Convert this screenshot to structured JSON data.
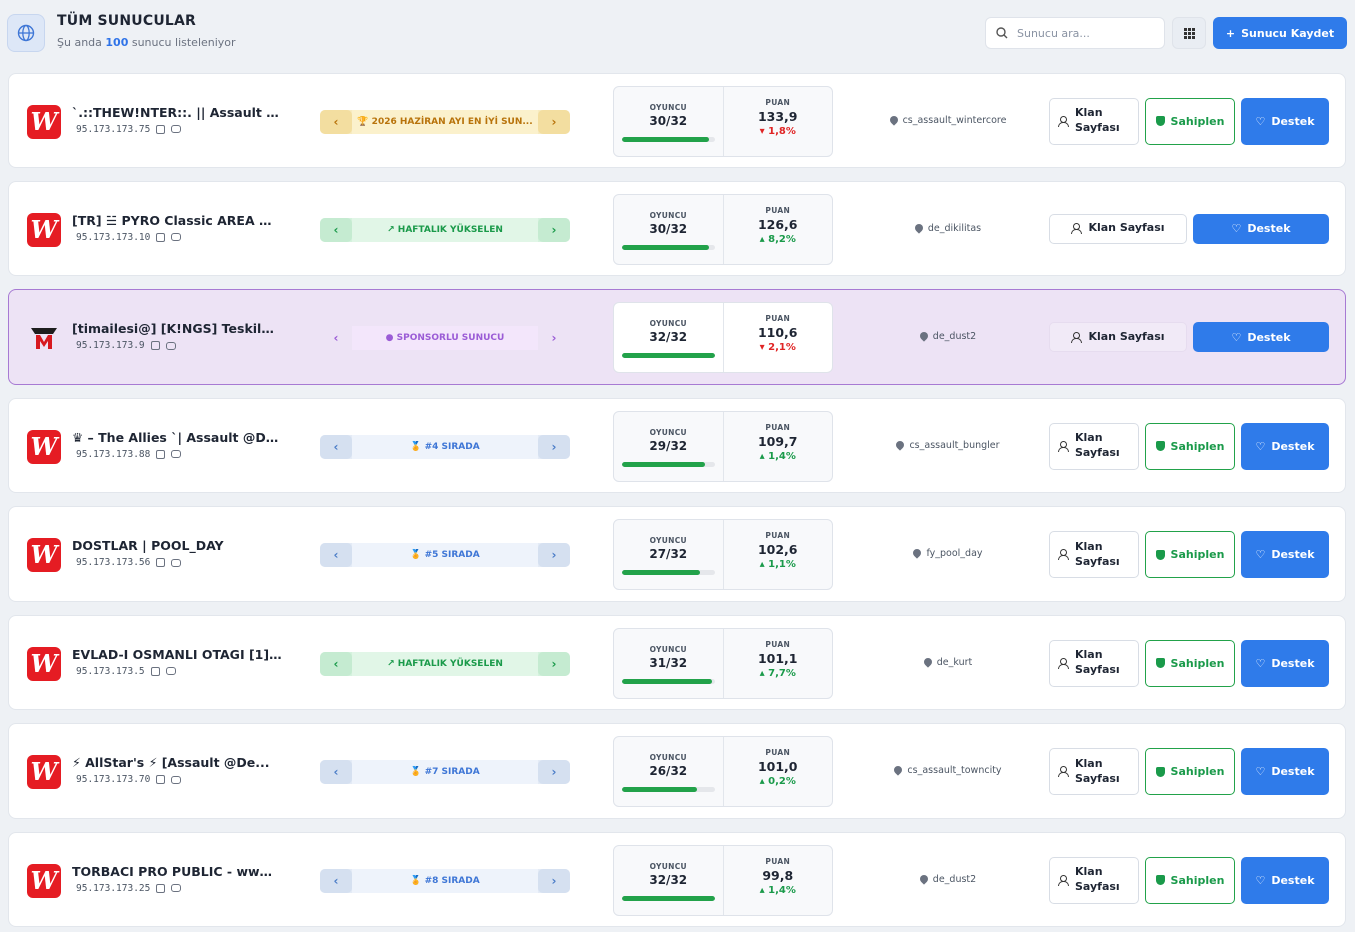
{
  "header": {
    "title": "TÜM SUNUCULAR",
    "subtitle_prefix": "Şu anda",
    "count": "100",
    "subtitle_suffix": "sunucu listeleniyor",
    "search_placeholder": "Sunucu ara...",
    "register_button": "Sunucu Kaydet"
  },
  "labels": {
    "players": "OYUNCU",
    "score": "PUAN",
    "clan_page": "Klan Sayfası",
    "claim": "Sahiplen",
    "support": "Destek"
  },
  "servers": [
    {
      "name": "`.::THEW!NTER::. || Assault @...",
      "ip": "95.173.173.75",
      "badge": "🏆 2026 HAZİRAN AYI EN İYİ SUN...",
      "players": "30/32",
      "fill": 0.94,
      "score": "133,9",
      "delta": "1,8%",
      "trend": "down",
      "map": "cs_assault_wintercore"
    },
    {
      "name": "[TR] ☱ PYRO Classic AREA ® –...",
      "ip": "95.173.173.10",
      "badge": "↗ HAFTALIK YÜKSELEN",
      "players": "30/32",
      "fill": 0.94,
      "score": "126,6",
      "delta": "8,2%",
      "trend": "up",
      "map": "de_dikilitas"
    },
    {
      "name": "[timailesi@] [K!NGS] Teskilat-...",
      "ip": "95.173.173.9",
      "badge": "● SPONSORLU SUNUCU",
      "players": "32/32",
      "fill": 1.0,
      "score": "110,6",
      "delta": "2,1%",
      "trend": "down",
      "map": "de_dust2"
    },
    {
      "name": "♛ – The Allies `| Assault @De...",
      "ip": "95.173.173.88",
      "badge": "🏅 #4 SIRADA",
      "players": "29/32",
      "fill": 0.9,
      "score": "109,7",
      "delta": "1,4%",
      "trend": "up",
      "map": "cs_assault_bungler"
    },
    {
      "name": "DOSTLAR | POOL_DAY",
      "ip": "95.173.173.56",
      "badge": "🏅 #5 SIRADA",
      "players": "27/32",
      "fill": 0.84,
      "score": "102,6",
      "delta": "1,1%",
      "trend": "up",
      "map": "fy_pool_day"
    },
    {
      "name": "EVLAD-I OSMANLI OTAGI [1] (...",
      "ip": "95.173.173.5",
      "badge": "↗ HAFTALIK YÜKSELEN",
      "players": "31/32",
      "fill": 0.97,
      "score": "101,1",
      "delta": "7,7%",
      "trend": "up",
      "map": "de_kurt"
    },
    {
      "name": "⚡ AllStar's ⚡ [Assault @De...",
      "ip": "95.173.173.70",
      "badge": "🏅 #7 SIRADA",
      "players": "26/32",
      "fill": 0.81,
      "score": "101,0",
      "delta": "0,2%",
      "trend": "up",
      "map": "cs_assault_towncity"
    },
    {
      "name": "TORBACI PRO PUBLIC - www....",
      "ip": "95.173.173.25",
      "badge": "🏅 #8 SIRADA",
      "players": "32/32",
      "fill": 1.0,
      "score": "99,8",
      "delta": "1,4%",
      "trend": "up",
      "map": "de_dust2"
    }
  ]
}
